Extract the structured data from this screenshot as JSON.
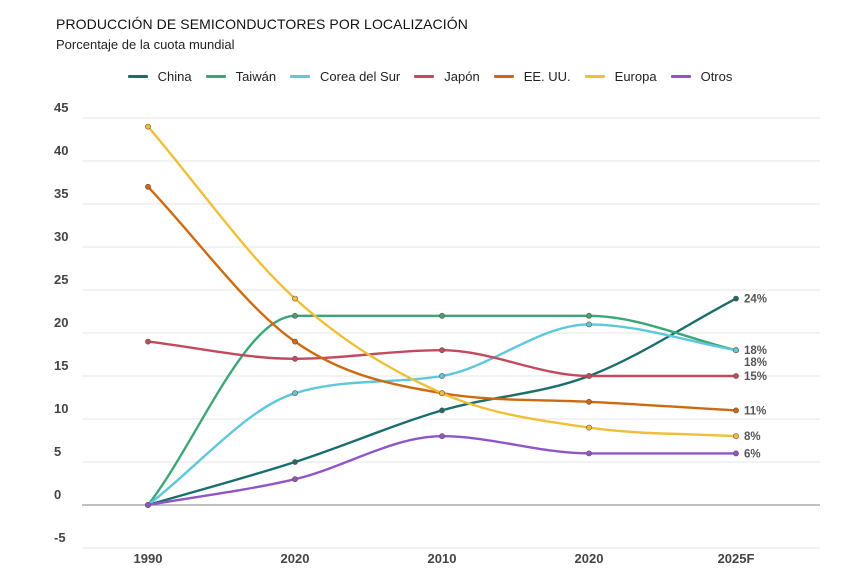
{
  "chart_data": {
    "type": "line",
    "title": "PRODUCCIÓN DE SEMICONDUCTORES POR LOCALIZACIÓN",
    "subtitle": "Porcentaje de la cuota mundial",
    "xlabel": "",
    "ylabel": "",
    "categories": [
      "1990",
      "2020",
      "2010",
      "2020",
      "2025F"
    ],
    "y_ticks": [
      "45",
      "40",
      "35",
      "30",
      "25",
      "20",
      "15",
      "10",
      "5",
      "0",
      "-5"
    ],
    "ylim": [
      -5,
      45
    ],
    "grid": true,
    "legend_position": "top",
    "series": [
      {
        "name": "China",
        "color": "#1a6e6e",
        "values": [
          0,
          5,
          11,
          15,
          24
        ],
        "end_label": "24%"
      },
      {
        "name": "Taiwán",
        "color": "#3aa776",
        "values": [
          0,
          22,
          22,
          22,
          18
        ],
        "end_label": "18%"
      },
      {
        "name": "Corea del Sur",
        "color": "#5fc7dc",
        "values": [
          0,
          13,
          15,
          21,
          18
        ],
        "end_label": "18%"
      },
      {
        "name": "Japón",
        "color": "#c24a5f",
        "values": [
          19,
          17,
          18,
          15,
          15
        ],
        "end_label": "15%"
      },
      {
        "name": "EE. UU.",
        "color": "#cc6a0f",
        "values": [
          37,
          19,
          13,
          12,
          11
        ],
        "end_label": "11%"
      },
      {
        "name": "Europa",
        "color": "#f0bf3a",
        "values": [
          44,
          24,
          13,
          9,
          8
        ],
        "end_label": "8%"
      },
      {
        "name": "Otros",
        "color": "#9055c8",
        "values": [
          0,
          3,
          8,
          6,
          6
        ],
        "end_label": "6%"
      }
    ]
  }
}
